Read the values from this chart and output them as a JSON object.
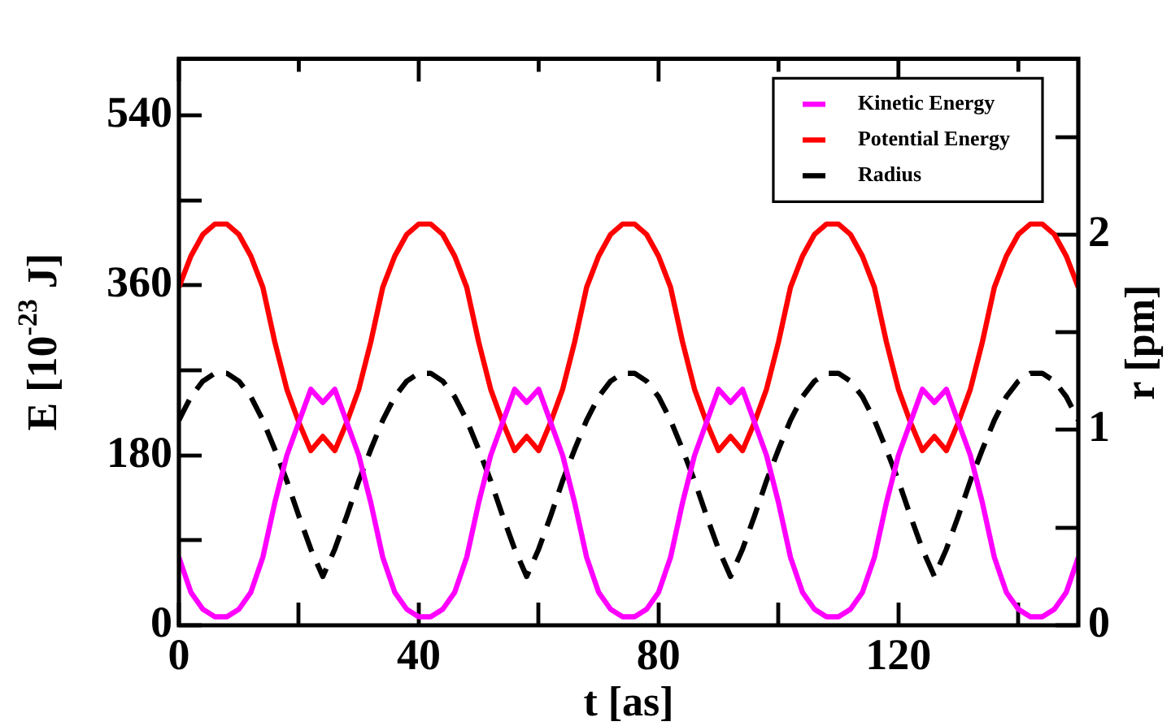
{
  "chart_data": {
    "type": "line",
    "xlabel": "t [as]",
    "ylabel": "E [10$^{-23}$ J]",
    "y2label": "r [pm]",
    "x": [
      0,
      2,
      4,
      6,
      8,
      10,
      12,
      14,
      16,
      18,
      20,
      22,
      24,
      26,
      28,
      30,
      32,
      34,
      36,
      38,
      40,
      42,
      44,
      46,
      48,
      50,
      52,
      54,
      56,
      58,
      60,
      62,
      64,
      66,
      68,
      70,
      72,
      74,
      76,
      78,
      80,
      82,
      84,
      86,
      88,
      90,
      92,
      94,
      96,
      98,
      100,
      102,
      104,
      106,
      108,
      110,
      112,
      114,
      116,
      118,
      120,
      122,
      124,
      126,
      128,
      130,
      132,
      134,
      136,
      138,
      140,
      142,
      144,
      146,
      148,
      150
    ],
    "xlim": [
      0,
      150
    ],
    "xticks": [
      0,
      {
        "value": 20,
        "label": null
      },
      40,
      {
        "value": 60,
        "label": null
      },
      80,
      {
        "value": 100,
        "label": null
      },
      120,
      {
        "value": 140,
        "label": null
      }
    ],
    "ylim": [
      0,
      600
    ],
    "yticks": [
      0,
      {
        "value": 90,
        "label": null
      },
      180,
      {
        "value": 270,
        "label": null
      },
      360,
      {
        "value": 450,
        "label": null
      },
      540
    ],
    "y2lim": [
      0,
      2.9
    ],
    "y2ticks": [
      0,
      {
        "value": 0.5,
        "label": null
      },
      1,
      {
        "value": 1.5,
        "label": null
      },
      2,
      {
        "value": 2.5,
        "label": null
      }
    ],
    "legend": "top right",
    "grid": false,
    "marker": "none",
    "series": [
      {
        "name": "Kinetic Energy",
        "color": "#ff00ff",
        "line_style": "solid",
        "values": [
          72,
          35,
          17,
          9,
          9,
          17,
          35,
          72,
          130,
          180,
          215,
          250,
          236,
          250,
          215,
          180,
          130,
          72,
          35,
          17,
          9,
          9,
          17,
          35,
          72,
          130,
          180,
          215,
          250,
          236,
          250,
          215,
          180,
          130,
          72,
          35,
          17,
          9,
          9,
          17,
          35,
          72,
          130,
          180,
          215,
          250,
          236,
          250,
          215,
          180,
          130,
          72,
          35,
          17,
          9,
          9,
          17,
          35,
          72,
          130,
          180,
          215,
          250,
          236,
          250,
          215,
          180,
          130,
          72,
          35,
          17,
          9,
          9,
          17,
          35,
          72
        ]
      },
      {
        "name": "Potential Energy",
        "color": "#ff0000",
        "line_style": "solid",
        "values": [
          358,
          391,
          414,
          425,
          425,
          414,
          391,
          358,
          300,
          250,
          215,
          185,
          200,
          185,
          215,
          250,
          300,
          358,
          391,
          414,
          425,
          425,
          414,
          391,
          358,
          300,
          250,
          215,
          185,
          200,
          185,
          215,
          250,
          300,
          358,
          391,
          414,
          425,
          425,
          414,
          391,
          358,
          300,
          250,
          215,
          185,
          200,
          185,
          215,
          250,
          300,
          358,
          391,
          414,
          425,
          425,
          414,
          391,
          358,
          300,
          250,
          215,
          185,
          200,
          185,
          215,
          250,
          300,
          358,
          391,
          414,
          425,
          425,
          414,
          391,
          358
        ]
      },
      {
        "name": "Radius",
        "color": "#000000",
        "line_style": "dashed",
        "axis": "y2",
        "values": [
          1.05,
          1.17,
          1.25,
          1.29,
          1.29,
          1.25,
          1.17,
          1.05,
          0.9,
          0.74,
          0.56,
          0.39,
          0.25,
          0.39,
          0.56,
          0.74,
          0.9,
          1.05,
          1.17,
          1.25,
          1.29,
          1.29,
          1.25,
          1.17,
          1.05,
          0.9,
          0.74,
          0.56,
          0.39,
          0.25,
          0.39,
          0.56,
          0.74,
          0.9,
          1.05,
          1.17,
          1.25,
          1.29,
          1.29,
          1.25,
          1.17,
          1.05,
          0.9,
          0.74,
          0.56,
          0.39,
          0.25,
          0.39,
          0.56,
          0.74,
          0.9,
          1.05,
          1.17,
          1.25,
          1.29,
          1.29,
          1.25,
          1.17,
          1.05,
          0.9,
          0.74,
          0.56,
          0.39,
          0.25,
          0.39,
          0.56,
          0.74,
          0.9,
          1.05,
          1.17,
          1.25,
          1.29,
          1.29,
          1.25,
          1.17,
          1.05
        ]
      }
    ]
  }
}
